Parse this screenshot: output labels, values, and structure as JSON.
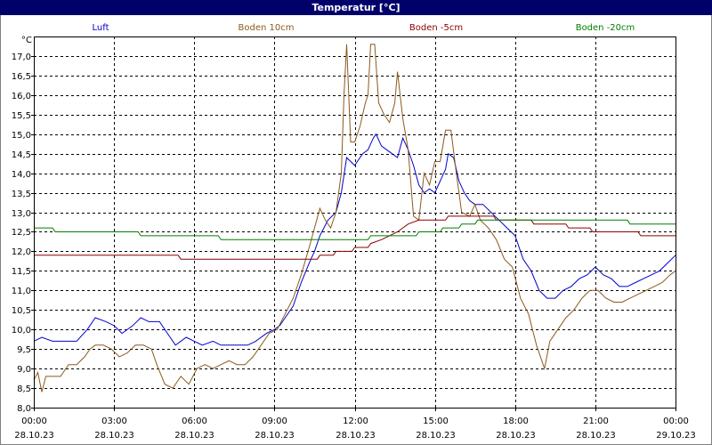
{
  "chart_data": {
    "type": "line",
    "title": "Temperatur [°C]",
    "y_unit": "°C",
    "ylim": [
      8.0,
      17.5
    ],
    "y_ticks": [
      "8,0",
      "8,5",
      "9,0",
      "9,5",
      "10,0",
      "10,5",
      "11,0",
      "11,5",
      "12,0",
      "12,5",
      "13,0",
      "13,5",
      "14,0",
      "14,5",
      "15,0",
      "15,5",
      "16,0",
      "16,5",
      "17,0"
    ],
    "x_range_hours": [
      0,
      24
    ],
    "x_ticks": [
      {
        "time": "00:00",
        "date": "28.10.23"
      },
      {
        "time": "03:00",
        "date": "28.10.23"
      },
      {
        "time": "06:00",
        "date": "28.10.23"
      },
      {
        "time": "09:00",
        "date": "28.10.23"
      },
      {
        "time": "12:00",
        "date": "28.10.23"
      },
      {
        "time": "15:00",
        "date": "28.10.23"
      },
      {
        "time": "18:00",
        "date": "28.10.23"
      },
      {
        "time": "21:00",
        "date": "28.10.23"
      },
      {
        "time": "00:00",
        "date": "29.10.23"
      }
    ],
    "grid": true,
    "legend_position": "top",
    "series": [
      {
        "name": "Luft",
        "color": "#0000cc",
        "points": [
          [
            0.0,
            9.7
          ],
          [
            0.3,
            9.8
          ],
          [
            0.7,
            9.7
          ],
          [
            1.2,
            9.7
          ],
          [
            1.6,
            9.7
          ],
          [
            2.0,
            10.0
          ],
          [
            2.3,
            10.3
          ],
          [
            2.7,
            10.2
          ],
          [
            3.0,
            10.1
          ],
          [
            3.3,
            9.9
          ],
          [
            3.7,
            10.1
          ],
          [
            4.0,
            10.3
          ],
          [
            4.3,
            10.2
          ],
          [
            4.7,
            10.2
          ],
          [
            5.0,
            9.9
          ],
          [
            5.3,
            9.6
          ],
          [
            5.7,
            9.8
          ],
          [
            6.0,
            9.7
          ],
          [
            6.3,
            9.6
          ],
          [
            6.7,
            9.7
          ],
          [
            7.0,
            9.6
          ],
          [
            7.3,
            9.6
          ],
          [
            7.7,
            9.6
          ],
          [
            8.0,
            9.6
          ],
          [
            8.3,
            9.7
          ],
          [
            8.7,
            9.9
          ],
          [
            9.0,
            10.0
          ],
          [
            9.2,
            10.1
          ],
          [
            9.4,
            10.3
          ],
          [
            9.7,
            10.6
          ],
          [
            10.0,
            11.2
          ],
          [
            10.3,
            11.7
          ],
          [
            10.5,
            12.0
          ],
          [
            10.7,
            12.4
          ],
          [
            11.0,
            12.8
          ],
          [
            11.3,
            13.0
          ],
          [
            11.5,
            13.5
          ],
          [
            11.7,
            14.4
          ],
          [
            12.0,
            14.2
          ],
          [
            12.3,
            14.5
          ],
          [
            12.5,
            14.6
          ],
          [
            12.7,
            14.9
          ],
          [
            12.8,
            15.0
          ],
          [
            13.0,
            14.7
          ],
          [
            13.2,
            14.6
          ],
          [
            13.4,
            14.5
          ],
          [
            13.6,
            14.4
          ],
          [
            13.8,
            14.9
          ],
          [
            14.0,
            14.6
          ],
          [
            14.2,
            14.2
          ],
          [
            14.4,
            13.7
          ],
          [
            14.6,
            13.5
          ],
          [
            14.8,
            13.6
          ],
          [
            15.0,
            13.5
          ],
          [
            15.2,
            13.8
          ],
          [
            15.4,
            14.1
          ],
          [
            15.5,
            14.5
          ],
          [
            15.7,
            14.4
          ],
          [
            15.9,
            13.8
          ],
          [
            16.1,
            13.5
          ],
          [
            16.3,
            13.3
          ],
          [
            16.5,
            13.2
          ],
          [
            16.8,
            13.2
          ],
          [
            17.1,
            13.0
          ],
          [
            17.4,
            12.8
          ],
          [
            17.7,
            12.6
          ],
          [
            18.0,
            12.4
          ],
          [
            18.3,
            11.8
          ],
          [
            18.6,
            11.5
          ],
          [
            18.9,
            11.0
          ],
          [
            19.2,
            10.8
          ],
          [
            19.5,
            10.8
          ],
          [
            19.8,
            11.0
          ],
          [
            20.1,
            11.1
          ],
          [
            20.4,
            11.3
          ],
          [
            20.7,
            11.4
          ],
          [
            21.0,
            11.6
          ],
          [
            21.3,
            11.4
          ],
          [
            21.6,
            11.3
          ],
          [
            21.9,
            11.1
          ],
          [
            22.2,
            11.1
          ],
          [
            22.5,
            11.2
          ],
          [
            22.8,
            11.3
          ],
          [
            23.1,
            11.4
          ],
          [
            23.4,
            11.5
          ],
          [
            23.7,
            11.7
          ],
          [
            24.0,
            11.9
          ]
        ]
      },
      {
        "name": "Boden 10cm",
        "color": "#8b5a1c",
        "points": [
          [
            0.0,
            8.7
          ],
          [
            0.15,
            8.9
          ],
          [
            0.3,
            8.4
          ],
          [
            0.45,
            8.8
          ],
          [
            0.7,
            8.8
          ],
          [
            1.0,
            8.8
          ],
          [
            1.3,
            9.1
          ],
          [
            1.6,
            9.1
          ],
          [
            1.9,
            9.3
          ],
          [
            2.1,
            9.5
          ],
          [
            2.3,
            9.6
          ],
          [
            2.6,
            9.6
          ],
          [
            2.9,
            9.5
          ],
          [
            3.2,
            9.3
          ],
          [
            3.5,
            9.4
          ],
          [
            3.8,
            9.6
          ],
          [
            4.1,
            9.6
          ],
          [
            4.4,
            9.5
          ],
          [
            4.6,
            9.1
          ],
          [
            4.9,
            8.6
          ],
          [
            5.2,
            8.5
          ],
          [
            5.5,
            8.8
          ],
          [
            5.8,
            8.6
          ],
          [
            6.1,
            9.0
          ],
          [
            6.4,
            9.1
          ],
          [
            6.7,
            9.0
          ],
          [
            7.0,
            9.1
          ],
          [
            7.3,
            9.2
          ],
          [
            7.6,
            9.1
          ],
          [
            7.9,
            9.1
          ],
          [
            8.2,
            9.3
          ],
          [
            8.5,
            9.6
          ],
          [
            8.8,
            9.9
          ],
          [
            9.1,
            10.0
          ],
          [
            9.4,
            10.4
          ],
          [
            9.7,
            10.8
          ],
          [
            10.0,
            11.4
          ],
          [
            10.3,
            12.1
          ],
          [
            10.5,
            12.6
          ],
          [
            10.7,
            13.1
          ],
          [
            10.9,
            12.8
          ],
          [
            11.1,
            12.6
          ],
          [
            11.3,
            13.0
          ],
          [
            11.5,
            14.0
          ],
          [
            11.6,
            16.0
          ],
          [
            11.7,
            17.3
          ],
          [
            11.85,
            14.8
          ],
          [
            12.0,
            14.8
          ],
          [
            12.2,
            15.2
          ],
          [
            12.4,
            15.8
          ],
          [
            12.5,
            16.0
          ],
          [
            12.6,
            17.3
          ],
          [
            12.75,
            17.3
          ],
          [
            12.9,
            15.8
          ],
          [
            13.1,
            15.5
          ],
          [
            13.3,
            15.3
          ],
          [
            13.5,
            15.8
          ],
          [
            13.6,
            16.6
          ],
          [
            13.8,
            15.4
          ],
          [
            14.0,
            14.6
          ],
          [
            14.2,
            12.9
          ],
          [
            14.4,
            12.8
          ],
          [
            14.6,
            14.0
          ],
          [
            14.8,
            13.7
          ],
          [
            15.0,
            14.3
          ],
          [
            15.2,
            14.3
          ],
          [
            15.4,
            15.1
          ],
          [
            15.6,
            15.1
          ],
          [
            15.8,
            14.0
          ],
          [
            16.0,
            13.0
          ],
          [
            16.3,
            12.9
          ],
          [
            16.5,
            13.2
          ],
          [
            16.7,
            12.8
          ],
          [
            17.0,
            12.6
          ],
          [
            17.3,
            12.3
          ],
          [
            17.6,
            11.8
          ],
          [
            17.9,
            11.6
          ],
          [
            18.2,
            10.8
          ],
          [
            18.5,
            10.4
          ],
          [
            18.8,
            9.6
          ],
          [
            19.1,
            9.0
          ],
          [
            19.3,
            9.7
          ],
          [
            19.6,
            10.0
          ],
          [
            19.9,
            10.3
          ],
          [
            20.2,
            10.5
          ],
          [
            20.5,
            10.8
          ],
          [
            20.8,
            11.0
          ],
          [
            21.1,
            11.0
          ],
          [
            21.4,
            10.8
          ],
          [
            21.7,
            10.7
          ],
          [
            22.0,
            10.7
          ],
          [
            22.3,
            10.8
          ],
          [
            22.6,
            10.9
          ],
          [
            22.9,
            11.0
          ],
          [
            23.2,
            11.1
          ],
          [
            23.5,
            11.2
          ],
          [
            23.8,
            11.4
          ],
          [
            24.0,
            11.5
          ]
        ]
      },
      {
        "name": "Boden -5cm",
        "color": "#8b0000",
        "points": [
          [
            0.0,
            11.9
          ],
          [
            5.4,
            11.9
          ],
          [
            5.5,
            11.8
          ],
          [
            10.6,
            11.8
          ],
          [
            10.7,
            11.9
          ],
          [
            11.2,
            11.9
          ],
          [
            11.3,
            12.0
          ],
          [
            11.9,
            12.0
          ],
          [
            12.0,
            12.1
          ],
          [
            12.5,
            12.1
          ],
          [
            12.6,
            12.2
          ],
          [
            13.0,
            12.3
          ],
          [
            13.3,
            12.4
          ],
          [
            13.6,
            12.5
          ],
          [
            14.0,
            12.7
          ],
          [
            14.4,
            12.8
          ],
          [
            15.4,
            12.8
          ],
          [
            15.5,
            12.9
          ],
          [
            17.2,
            12.9
          ],
          [
            17.3,
            12.8
          ],
          [
            18.6,
            12.8
          ],
          [
            18.7,
            12.7
          ],
          [
            19.9,
            12.7
          ],
          [
            20.0,
            12.6
          ],
          [
            20.8,
            12.6
          ],
          [
            20.9,
            12.5
          ],
          [
            22.6,
            12.5
          ],
          [
            22.7,
            12.4
          ],
          [
            24.0,
            12.4
          ]
        ]
      },
      {
        "name": "Boden -20cm",
        "color": "#008000",
        "points": [
          [
            0.0,
            12.6
          ],
          [
            0.7,
            12.6
          ],
          [
            0.8,
            12.5
          ],
          [
            3.9,
            12.5
          ],
          [
            4.0,
            12.4
          ],
          [
            6.9,
            12.4
          ],
          [
            7.0,
            12.3
          ],
          [
            12.5,
            12.3
          ],
          [
            12.6,
            12.4
          ],
          [
            14.3,
            12.4
          ],
          [
            14.4,
            12.5
          ],
          [
            15.2,
            12.5
          ],
          [
            15.3,
            12.6
          ],
          [
            15.9,
            12.6
          ],
          [
            16.0,
            12.7
          ],
          [
            16.5,
            12.7
          ],
          [
            16.6,
            12.8
          ],
          [
            22.2,
            12.8
          ],
          [
            22.3,
            12.7
          ],
          [
            24.0,
            12.7
          ]
        ]
      }
    ]
  }
}
